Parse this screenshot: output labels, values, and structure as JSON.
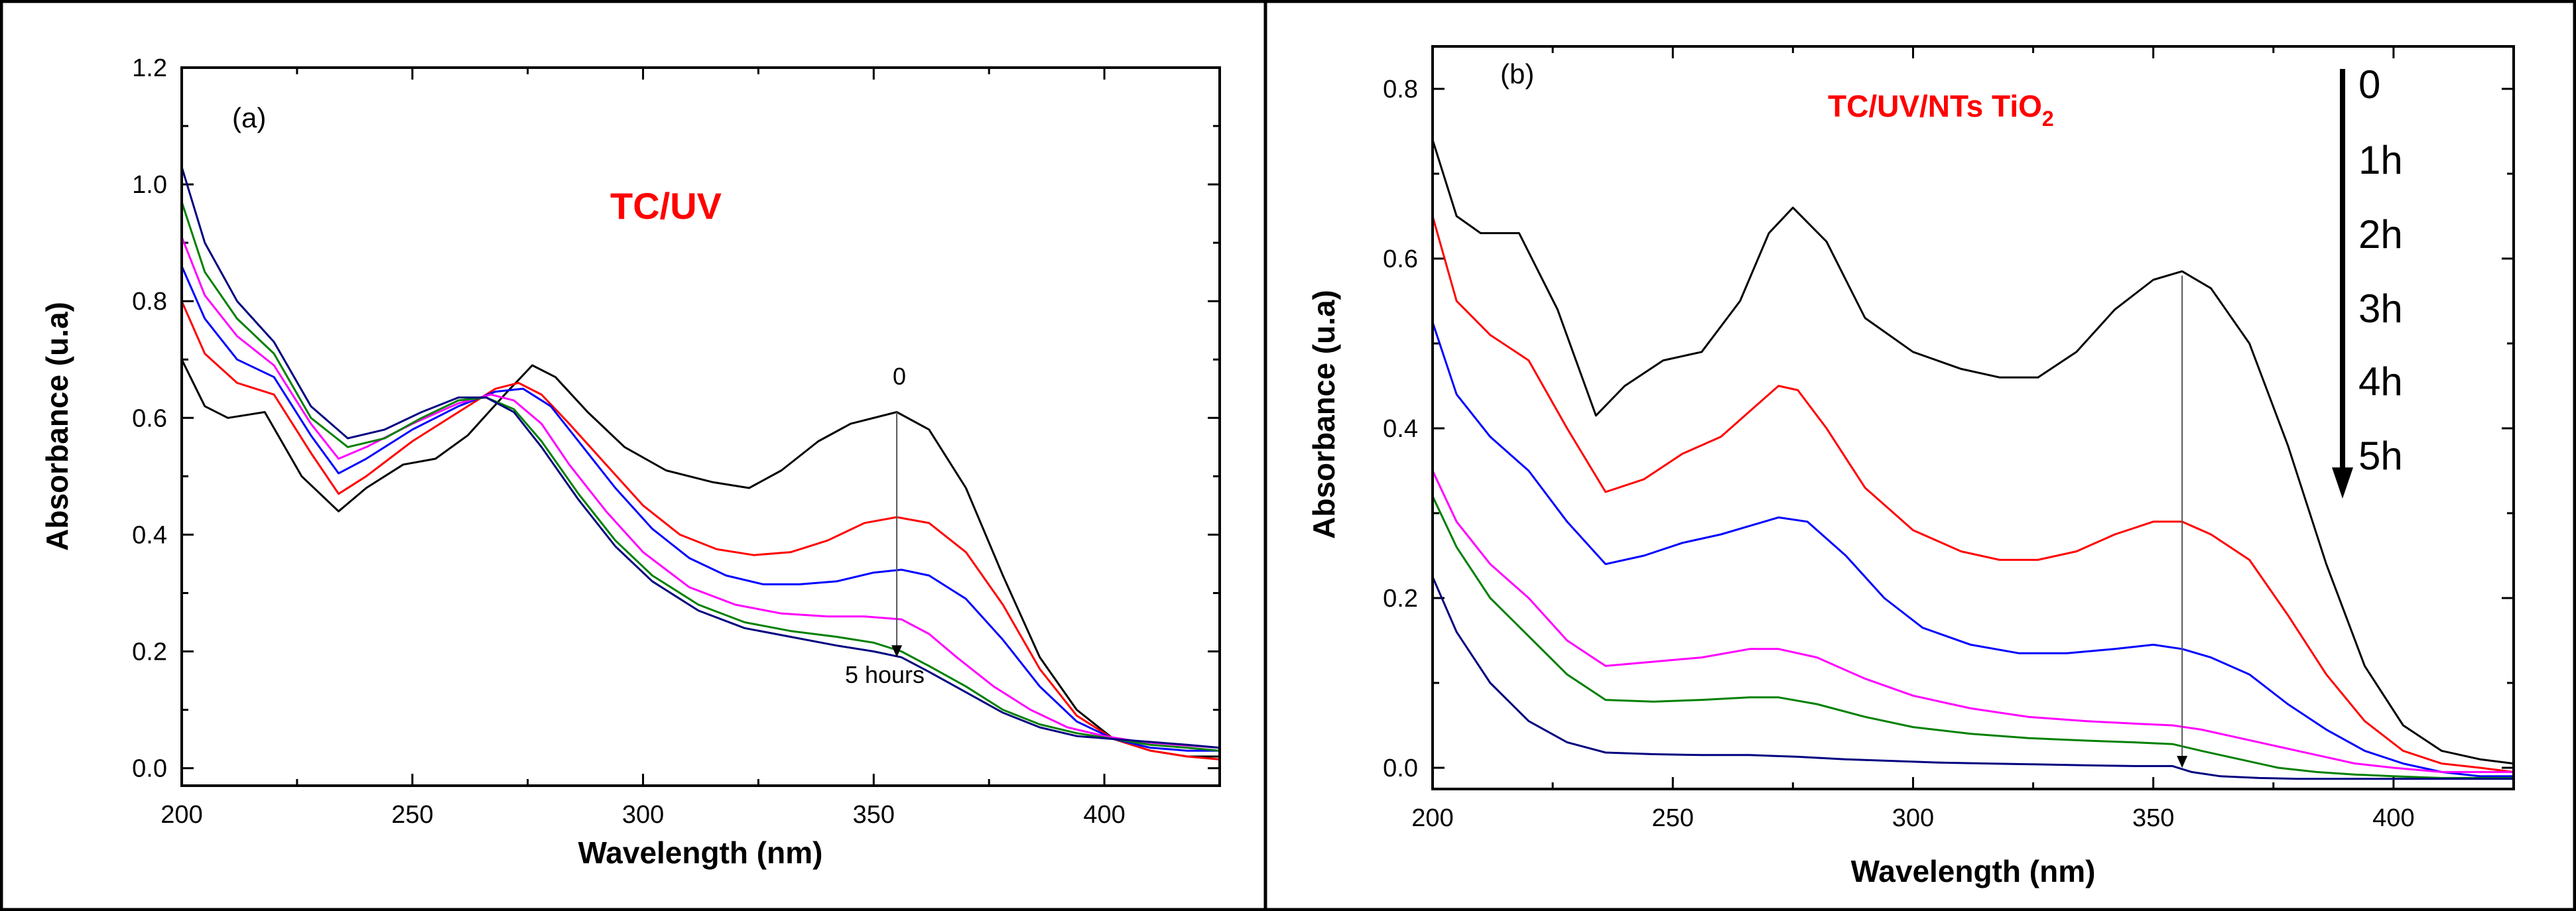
{
  "colors": {
    "black": "#000000",
    "red": "#ff0000",
    "blue": "#0000ff",
    "magenta": "#ff00ff",
    "green": "#008000",
    "navy": "#000080"
  },
  "chart_data": [
    {
      "type": "line",
      "panel_label": "(a)",
      "title": "TC/UV",
      "xlabel": "Wavelength (nm)",
      "ylabel": "Absorbance (u.a)",
      "xlim": [
        200,
        425
      ],
      "ylim": [
        -0.03,
        1.2
      ],
      "x_ticks": [
        "200",
        "250",
        "300",
        "350",
        "400"
      ],
      "y_ticks": [
        "0.0",
        "0.2",
        "0.4",
        "0.6",
        "0.8",
        "1.0",
        "1.2"
      ],
      "annotation_start": "0",
      "annotation_end": "5 hours",
      "arrow_x": 355,
      "arrow_from": 0.61,
      "arrow_to": 0.19,
      "series": [
        {
          "name": "0",
          "color": "#000000",
          "x": [
            200,
            205,
            210,
            218,
            226,
            234,
            240,
            248,
            255,
            262,
            270,
            276,
            281,
            288,
            296,
            305,
            315,
            323,
            330,
            338,
            345,
            355,
            362,
            370,
            378,
            386,
            394,
            402,
            410,
            418,
            425
          ],
          "y": [
            0.7,
            0.62,
            0.6,
            0.61,
            0.5,
            0.44,
            0.48,
            0.52,
            0.53,
            0.57,
            0.64,
            0.69,
            0.67,
            0.61,
            0.55,
            0.51,
            0.49,
            0.48,
            0.51,
            0.56,
            0.59,
            0.61,
            0.58,
            0.48,
            0.33,
            0.19,
            0.1,
            0.05,
            0.03,
            0.02,
            0.02
          ]
        },
        {
          "name": "1h",
          "color": "#ff0000",
          "x": [
            200,
            205,
            212,
            220,
            228,
            234,
            240,
            250,
            260,
            268,
            273,
            278,
            284,
            292,
            300,
            308,
            316,
            324,
            332,
            340,
            348,
            355,
            362,
            370,
            378,
            386,
            394,
            402,
            410,
            418,
            425
          ],
          "y": [
            0.8,
            0.71,
            0.66,
            0.64,
            0.54,
            0.47,
            0.5,
            0.56,
            0.61,
            0.65,
            0.66,
            0.64,
            0.59,
            0.52,
            0.45,
            0.4,
            0.375,
            0.365,
            0.37,
            0.39,
            0.42,
            0.43,
            0.42,
            0.37,
            0.28,
            0.17,
            0.09,
            0.05,
            0.03,
            0.02,
            0.015
          ]
        },
        {
          "name": "2h",
          "color": "#0000ff",
          "x": [
            200,
            205,
            212,
            220,
            228,
            234,
            240,
            250,
            260,
            268,
            274,
            280,
            286,
            294,
            302,
            310,
            318,
            326,
            334,
            342,
            350,
            356,
            362,
            370,
            378,
            386,
            394,
            402,
            410,
            418,
            425
          ],
          "y": [
            0.86,
            0.77,
            0.7,
            0.67,
            0.57,
            0.505,
            0.53,
            0.58,
            0.62,
            0.645,
            0.65,
            0.62,
            0.56,
            0.48,
            0.41,
            0.36,
            0.33,
            0.315,
            0.315,
            0.32,
            0.335,
            0.34,
            0.33,
            0.29,
            0.22,
            0.14,
            0.08,
            0.05,
            0.035,
            0.03,
            0.03
          ]
        },
        {
          "name": "3h",
          "color": "#ff00ff",
          "x": [
            200,
            205,
            212,
            220,
            228,
            234,
            240,
            250,
            260,
            267,
            272,
            278,
            284,
            292,
            300,
            310,
            320,
            330,
            340,
            348,
            356,
            362,
            368,
            376,
            384,
            392,
            400,
            408,
            416,
            425
          ],
          "y": [
            0.91,
            0.81,
            0.74,
            0.69,
            0.59,
            0.53,
            0.55,
            0.59,
            0.625,
            0.64,
            0.63,
            0.59,
            0.52,
            0.44,
            0.37,
            0.31,
            0.28,
            0.265,
            0.26,
            0.26,
            0.255,
            0.23,
            0.19,
            0.14,
            0.1,
            0.07,
            0.055,
            0.045,
            0.04,
            0.035
          ]
        },
        {
          "name": "4h",
          "color": "#008000",
          "x": [
            200,
            205,
            212,
            220,
            228,
            236,
            244,
            252,
            260,
            266,
            272,
            278,
            286,
            294,
            302,
            312,
            322,
            332,
            342,
            350,
            356,
            362,
            370,
            378,
            386,
            394,
            402,
            410,
            418,
            425
          ],
          "y": [
            0.97,
            0.85,
            0.77,
            0.71,
            0.6,
            0.55,
            0.565,
            0.6,
            0.63,
            0.635,
            0.615,
            0.56,
            0.47,
            0.39,
            0.33,
            0.28,
            0.25,
            0.235,
            0.225,
            0.215,
            0.2,
            0.175,
            0.14,
            0.1,
            0.075,
            0.06,
            0.05,
            0.04,
            0.035,
            0.03
          ]
        },
        {
          "name": "5h",
          "color": "#000080",
          "x": [
            200,
            205,
            212,
            220,
            228,
            236,
            244,
            252,
            260,
            266,
            272,
            278,
            286,
            294,
            302,
            312,
            322,
            332,
            342,
            350,
            356,
            362,
            370,
            378,
            386,
            394,
            402,
            410,
            418,
            425
          ],
          "y": [
            1.03,
            0.9,
            0.8,
            0.73,
            0.62,
            0.565,
            0.58,
            0.61,
            0.635,
            0.635,
            0.61,
            0.55,
            0.46,
            0.38,
            0.32,
            0.27,
            0.24,
            0.225,
            0.21,
            0.2,
            0.19,
            0.165,
            0.13,
            0.095,
            0.07,
            0.055,
            0.05,
            0.045,
            0.04,
            0.035
          ]
        }
      ]
    },
    {
      "type": "line",
      "panel_label": "(b)",
      "title": "TC/UV/NTs TiO",
      "title_subscript": "2",
      "xlabel": "Wavelength (nm)",
      "ylabel": "Absorbance (u.a)",
      "xlim": [
        200,
        425
      ],
      "ylim": [
        -0.025,
        0.85
      ],
      "x_ticks": [
        "200",
        "250",
        "300",
        "350",
        "400"
      ],
      "y_ticks": [
        "0.0",
        "0.2",
        "0.4",
        "0.6",
        "0.8"
      ],
      "time_labels": [
        "0",
        "1h",
        "2h",
        "3h",
        "4h",
        "5h"
      ],
      "arrow_x": 356,
      "arrow_from": 0.58,
      "arrow_to": 0.0,
      "series": [
        {
          "name": "0",
          "color": "#000000",
          "x": [
            200,
            205,
            210,
            218,
            226,
            234,
            240,
            248,
            256,
            264,
            270,
            275,
            282,
            290,
            300,
            310,
            318,
            326,
            334,
            342,
            350,
            356,
            362,
            370,
            378,
            386,
            394,
            402,
            410,
            418,
            425
          ],
          "y": [
            0.74,
            0.65,
            0.63,
            0.63,
            0.54,
            0.415,
            0.45,
            0.48,
            0.49,
            0.55,
            0.63,
            0.66,
            0.62,
            0.53,
            0.49,
            0.47,
            0.46,
            0.46,
            0.49,
            0.54,
            0.575,
            0.585,
            0.565,
            0.5,
            0.38,
            0.24,
            0.12,
            0.05,
            0.02,
            0.01,
            0.005
          ]
        },
        {
          "name": "1h",
          "color": "#ff0000",
          "x": [
            200,
            205,
            212,
            220,
            228,
            236,
            244,
            252,
            260,
            266,
            272,
            276,
            282,
            290,
            300,
            310,
            318,
            326,
            334,
            342,
            350,
            356,
            362,
            370,
            378,
            386,
            394,
            402,
            410,
            418,
            425
          ],
          "y": [
            0.65,
            0.55,
            0.51,
            0.48,
            0.4,
            0.325,
            0.34,
            0.37,
            0.39,
            0.42,
            0.45,
            0.445,
            0.4,
            0.33,
            0.28,
            0.255,
            0.245,
            0.245,
            0.255,
            0.275,
            0.29,
            0.29,
            0.275,
            0.245,
            0.18,
            0.11,
            0.055,
            0.02,
            0.005,
            0.0,
            -0.005
          ]
        },
        {
          "name": "2h",
          "color": "#0000ff",
          "x": [
            200,
            205,
            212,
            220,
            228,
            236,
            244,
            252,
            260,
            266,
            272,
            278,
            286,
            294,
            302,
            312,
            322,
            332,
            342,
            350,
            356,
            362,
            370,
            378,
            386,
            394,
            402,
            410,
            418,
            425
          ],
          "y": [
            0.525,
            0.44,
            0.39,
            0.35,
            0.29,
            0.24,
            0.25,
            0.265,
            0.275,
            0.285,
            0.295,
            0.29,
            0.25,
            0.2,
            0.165,
            0.145,
            0.135,
            0.135,
            0.14,
            0.145,
            0.14,
            0.13,
            0.11,
            0.075,
            0.045,
            0.02,
            0.005,
            -0.005,
            -0.01,
            -0.01
          ]
        },
        {
          "name": "3h",
          "color": "#ff00ff",
          "x": [
            200,
            205,
            212,
            220,
            228,
            236,
            246,
            256,
            266,
            272,
            280,
            290,
            300,
            312,
            324,
            336,
            346,
            354,
            360,
            368,
            376,
            384,
            392,
            400,
            410,
            418,
            425
          ],
          "y": [
            0.35,
            0.29,
            0.24,
            0.2,
            0.15,
            0.12,
            0.125,
            0.13,
            0.14,
            0.14,
            0.13,
            0.105,
            0.085,
            0.07,
            0.06,
            0.055,
            0.052,
            0.05,
            0.045,
            0.035,
            0.025,
            0.015,
            0.005,
            0.0,
            -0.005,
            -0.005,
            -0.005
          ]
        },
        {
          "name": "4h",
          "color": "#008000",
          "x": [
            200,
            205,
            212,
            220,
            228,
            236,
            246,
            256,
            266,
            272,
            280,
            290,
            300,
            312,
            324,
            336,
            346,
            354,
            360,
            368,
            376,
            384,
            392,
            400,
            410,
            418,
            425
          ],
          "y": [
            0.32,
            0.26,
            0.2,
            0.155,
            0.11,
            0.08,
            0.078,
            0.08,
            0.083,
            0.083,
            0.075,
            0.06,
            0.048,
            0.04,
            0.035,
            0.032,
            0.03,
            0.028,
            0.02,
            0.01,
            0.0,
            -0.005,
            -0.008,
            -0.01,
            -0.012,
            -0.012,
            -0.012
          ]
        },
        {
          "name": "5h",
          "color": "#000080",
          "x": [
            200,
            205,
            212,
            220,
            228,
            236,
            246,
            256,
            266,
            276,
            286,
            296,
            306,
            316,
            326,
            336,
            346,
            354,
            358,
            364,
            372,
            380,
            390,
            400,
            410,
            418,
            425
          ],
          "y": [
            0.225,
            0.16,
            0.1,
            0.055,
            0.03,
            0.018,
            0.016,
            0.015,
            0.015,
            0.013,
            0.01,
            0.008,
            0.006,
            0.005,
            0.004,
            0.003,
            0.002,
            0.002,
            -0.005,
            -0.01,
            -0.012,
            -0.013,
            -0.013,
            -0.013,
            -0.013,
            -0.013,
            -0.013
          ]
        }
      ]
    }
  ]
}
